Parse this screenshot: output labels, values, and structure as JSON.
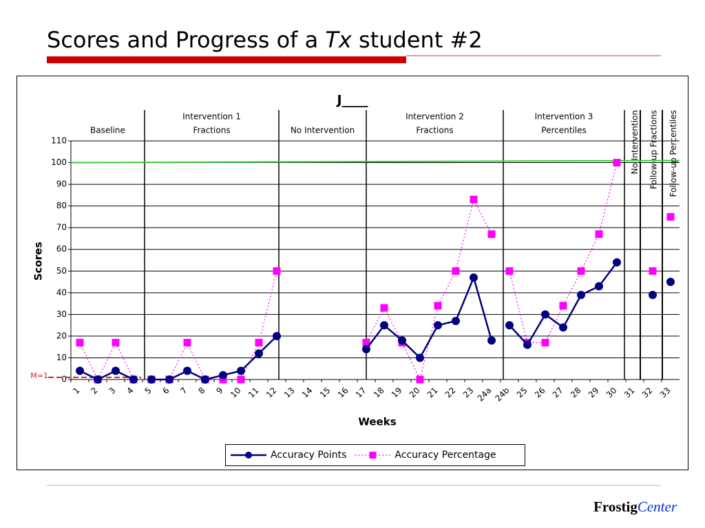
{
  "slide": {
    "title": [
      "Scores and Progress of a ",
      "Tx",
      " student #2"
    ],
    "footer": [
      "Frostig",
      "Center"
    ]
  },
  "chart_data": {
    "type": "line",
    "title": "J____",
    "x_label": "Weeks",
    "y_label": "Scores",
    "categories": [
      "1",
      "2",
      "3",
      "4",
      "5",
      "6",
      "7",
      "8",
      "9",
      "10",
      "11",
      "12",
      "13",
      "14",
      "15",
      "16",
      "17",
      "18",
      "19",
      "20",
      "21",
      "22",
      "23",
      "24a",
      "24b",
      "25",
      "26",
      "27",
      "28",
      "29",
      "30",
      "31",
      "32",
      "33"
    ],
    "series": [
      {
        "name": "Accuracy Points",
        "color": "#000080",
        "marker": "circle",
        "dash": "solid",
        "values": [
          4,
          0,
          4,
          0,
          0,
          0,
          4,
          0,
          2,
          4,
          12,
          20,
          null,
          null,
          null,
          null,
          14,
          25,
          18,
          10,
          25,
          27,
          47,
          18,
          25,
          16,
          30,
          24,
          39,
          43,
          54,
          null,
          39,
          45
        ]
      },
      {
        "name": "Accuracy Percentage",
        "color": "#ff00ff",
        "marker": "square",
        "dash": "dotted",
        "values": [
          17,
          0,
          17,
          0,
          0,
          0,
          17,
          0,
          0,
          0,
          17,
          50,
          null,
          null,
          null,
          null,
          17,
          33,
          17,
          0,
          34,
          50,
          83,
          67,
          50,
          17,
          17,
          34,
          50,
          67,
          100,
          null,
          50,
          75
        ]
      }
    ],
    "ylim": [
      0,
      110
    ],
    "yticks": [
      0,
      10,
      20,
      30,
      40,
      50,
      60,
      70,
      80,
      90,
      100,
      110
    ],
    "grid": true,
    "legend": "bottom",
    "phases": [
      {
        "label": [
          "Baseline"
        ]
      },
      {
        "label": [
          "Intervention 1",
          "Fractions"
        ]
      },
      {
        "label": [
          "No Intervention"
        ]
      },
      {
        "label": [
          "Intervention 2",
          "Fractions"
        ]
      },
      {
        "label": [
          "Intervention 3",
          "Percentiles"
        ]
      },
      {
        "label": [
          "No Intervention"
        ],
        "vertical": true
      },
      {
        "label": [
          "Follow-up Fractions"
        ],
        "vertical": true
      },
      {
        "label": [
          "Follow-up Percentiles"
        ],
        "vertical": true
      }
    ],
    "reference_lines": [
      {
        "label": "M=1",
        "value": 1,
        "color": "#e02020",
        "dash": "dashed"
      },
      {
        "value": 100,
        "color": "#33cc33",
        "dash": "solid"
      }
    ]
  }
}
